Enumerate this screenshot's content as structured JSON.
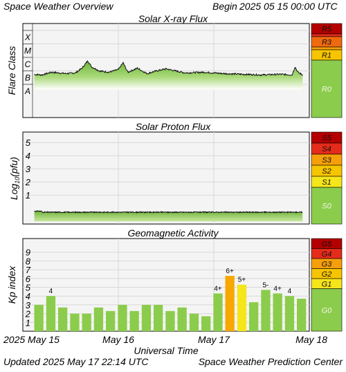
{
  "header": {
    "title": "Space Weather Overview",
    "begin_label": "Begin",
    "begin_time": "2025 05 15 00:00 UTC"
  },
  "footer": {
    "updated_label": "Updated",
    "updated_time": "2025 May 17 22:14 UTC",
    "source": "Space Weather Prediction Center"
  },
  "colors": {
    "panel_bg": "#f4f4f4",
    "grid": "#d8d8d8",
    "green": "#8ccc4c",
    "light_green": "#c9e89e",
    "yellow": "#f5e51b",
    "gold": "#f7c400",
    "orange": "#f59f0a",
    "dark_orange": "#ef6a0f",
    "red": "#e52b1a",
    "dark_red": "#b40000"
  },
  "chart_data": [
    {
      "type": "area",
      "title": "Solar X-ray Flux",
      "ylabel": "Flare Class",
      "y_categories": [
        "A",
        "B",
        "C",
        "M",
        "X"
      ],
      "x": [
        "2025 May 15",
        "May 16",
        "May 17",
        "May 18"
      ],
      "x_range_days": [
        0,
        3
      ],
      "data_end_day": 2.93,
      "series_description_points": [
        {
          "day": 0.0,
          "class_level": 1.6
        },
        {
          "day": 0.1,
          "class_level": 1.75
        },
        {
          "day": 0.2,
          "class_level": 1.7
        },
        {
          "day": 0.3,
          "class_level": 1.9
        },
        {
          "day": 0.45,
          "class_level": 1.8
        },
        {
          "day": 0.55,
          "class_level": 1.85
        },
        {
          "day": 0.62,
          "class_level": 2.2
        },
        {
          "day": 0.68,
          "class_level": 2.75
        },
        {
          "day": 0.72,
          "class_level": 2.3
        },
        {
          "day": 0.8,
          "class_level": 2.0
        },
        {
          "day": 0.9,
          "class_level": 1.9
        },
        {
          "day": 1.0,
          "class_level": 2.1
        },
        {
          "day": 1.05,
          "class_level": 2.6
        },
        {
          "day": 1.1,
          "class_level": 1.9
        },
        {
          "day": 1.2,
          "class_level": 2.2
        },
        {
          "day": 1.3,
          "class_level": 1.8
        },
        {
          "day": 1.4,
          "class_level": 2.0
        },
        {
          "day": 1.5,
          "class_level": 2.15
        },
        {
          "day": 1.7,
          "class_level": 1.85
        },
        {
          "day": 1.9,
          "class_level": 1.9
        },
        {
          "day": 2.1,
          "class_level": 1.8
        },
        {
          "day": 2.3,
          "class_level": 1.75
        },
        {
          "day": 2.5,
          "class_level": 1.7
        },
        {
          "day": 2.7,
          "class_level": 1.75
        },
        {
          "day": 2.82,
          "class_level": 1.7
        },
        {
          "day": 2.85,
          "class_level": 2.3
        },
        {
          "day": 2.88,
          "class_level": 1.9
        },
        {
          "day": 2.93,
          "class_level": 1.7
        }
      ],
      "scale_labels": [
        {
          "label": "R5",
          "color": "#b40000"
        },
        {
          "label": "R3",
          "color": "#ef6a0f"
        },
        {
          "label": "R1",
          "color": "#f7c400"
        },
        {
          "label": "R0",
          "color": "#8ccc4c"
        }
      ]
    },
    {
      "type": "area",
      "title": "Solar Proton Flux",
      "ylabel": "Log10(pfu)",
      "ylabel_main": "Log",
      "ylabel_sub": "10",
      "ylabel_rest": "(pfu)",
      "y_ticks": [
        1,
        2,
        3,
        4,
        5
      ],
      "ylim": [
        -1.2,
        5.8
      ],
      "series_level_log10": -0.3,
      "scale_labels": [
        {
          "label": "S5",
          "color": "#b40000"
        },
        {
          "label": "S4",
          "color": "#e52b1a"
        },
        {
          "label": "S3",
          "color": "#f59f0a"
        },
        {
          "label": "S2",
          "color": "#f7c400"
        },
        {
          "label": "S1",
          "color": "#f5e51b"
        },
        {
          "label": "S0",
          "color": "#8ccc4c"
        }
      ]
    },
    {
      "type": "bar",
      "title": "Geomagnetic Activity",
      "ylabel": "Kp index",
      "xlabel": "Universal Time",
      "y_ticks": [
        1,
        2,
        3,
        4,
        5,
        6,
        7,
        8,
        9
      ],
      "ylim": [
        0,
        10
      ],
      "x_tick_labels": [
        "2025 May 15",
        "May 16",
        "May 17",
        "May 18"
      ],
      "values": [
        3.0,
        4.0,
        2.7,
        2.0,
        2.0,
        2.7,
        2.3,
        3.0,
        2.3,
        3.0,
        3.0,
        2.3,
        2.7,
        2.0,
        1.7,
        4.3,
        6.3,
        5.3,
        3.3,
        4.7,
        4.3,
        4.0,
        3.7
      ],
      "bar_labels": [
        "",
        "4",
        "",
        "",
        "",
        "",
        "",
        "",
        "",
        "",
        "",
        "",
        "",
        "",
        "",
        "4+",
        "6+",
        "5+",
        "",
        "5-",
        "4+",
        "4",
        ""
      ],
      "bar_colors": [
        "#8ccc4c",
        "#8ccc4c",
        "#8ccc4c",
        "#8ccc4c",
        "#8ccc4c",
        "#8ccc4c",
        "#8ccc4c",
        "#8ccc4c",
        "#8ccc4c",
        "#8ccc4c",
        "#8ccc4c",
        "#8ccc4c",
        "#8ccc4c",
        "#8ccc4c",
        "#8ccc4c",
        "#8ccc4c",
        "#f7a800",
        "#f5e51b",
        "#8ccc4c",
        "#8ccc4c",
        "#8ccc4c",
        "#8ccc4c",
        "#8ccc4c"
      ],
      "scale_labels": [
        {
          "label": "G5",
          "color": "#b40000"
        },
        {
          "label": "G4",
          "color": "#e52b1a"
        },
        {
          "label": "G3",
          "color": "#f59f0a"
        },
        {
          "label": "G2",
          "color": "#f7c400"
        },
        {
          "label": "G1",
          "color": "#f5e51b"
        },
        {
          "label": "G0",
          "color": "#8ccc4c"
        }
      ]
    }
  ]
}
